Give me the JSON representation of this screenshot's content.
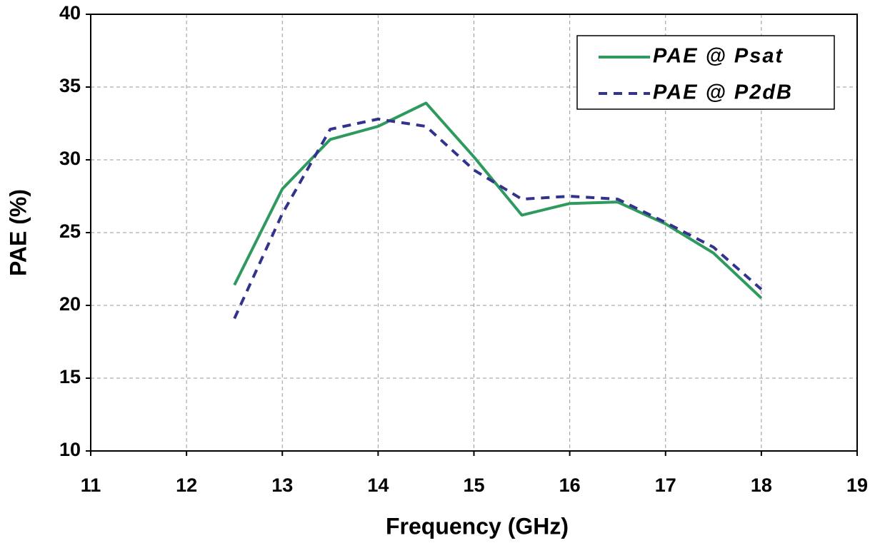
{
  "chart_data": {
    "type": "line",
    "xlabel": "Frequency (GHz)",
    "ylabel": "PAE (%)",
    "xlim": [
      11,
      19
    ],
    "xticks": [
      11,
      12,
      13,
      14,
      15,
      16,
      17,
      18,
      19
    ],
    "ylim": [
      10,
      40
    ],
    "yticks": [
      10,
      15,
      20,
      25,
      30,
      35,
      40
    ],
    "grid": true,
    "legend": "upper right",
    "x": [
      12.5,
      13,
      13.5,
      14,
      14.5,
      15,
      15.5,
      16,
      16.5,
      17,
      17.5,
      18
    ],
    "series": [
      {
        "name": "PAE @ Psat",
        "color": "#2e9a5e",
        "line_style": "solid",
        "values": [
          21.4,
          28.0,
          31.4,
          32.3,
          33.9,
          30.2,
          26.2,
          27.0,
          27.1,
          25.6,
          23.6,
          20.5
        ]
      },
      {
        "name": "PAE @ P2dB",
        "color": "#33338f",
        "line_style": "dashed",
        "values": [
          19.1,
          26.3,
          32.1,
          32.8,
          32.3,
          29.3,
          27.3,
          27.5,
          27.3,
          25.7,
          24.0,
          21.1
        ]
      }
    ]
  }
}
